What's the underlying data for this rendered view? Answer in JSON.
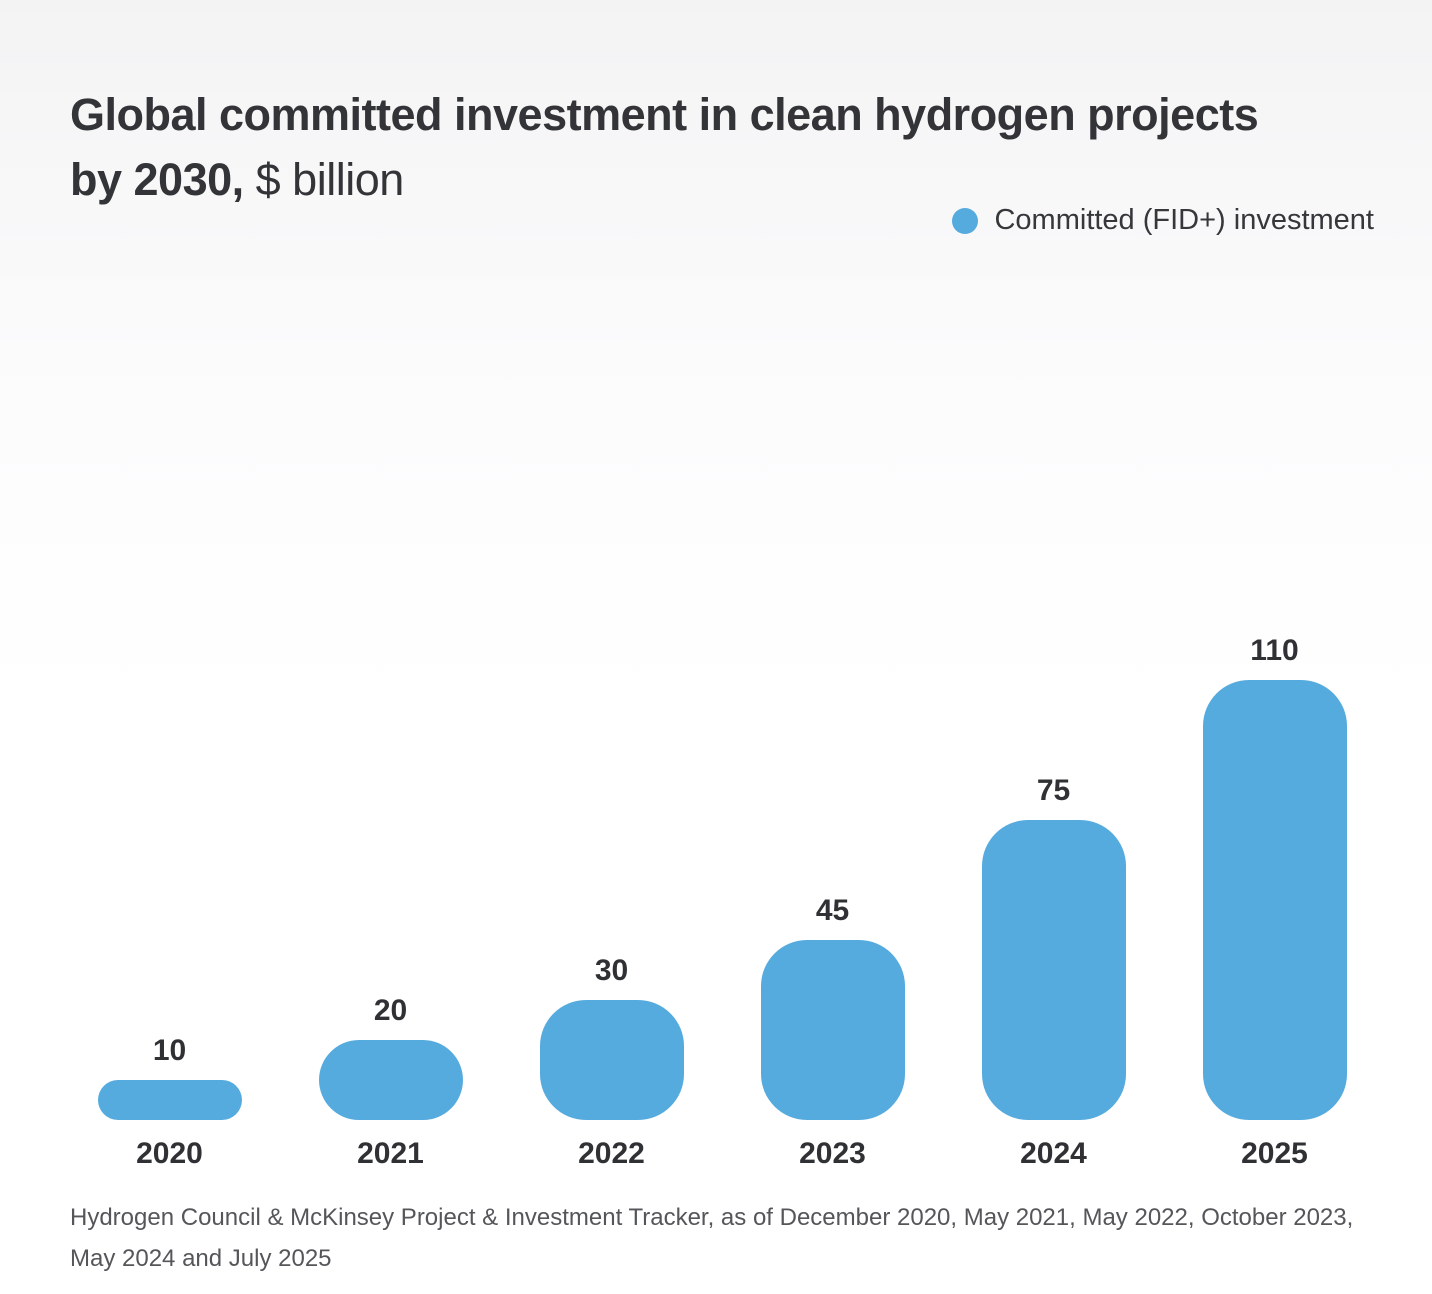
{
  "title": {
    "line1": "Global committed investment in clean hydrogen projects",
    "line2_bold": "by 2030,",
    "line2_regular": "$ billion"
  },
  "legend": {
    "label": "Committed (FID+) investment",
    "dot_color": "#56abde"
  },
  "chart_data": {
    "type": "bar",
    "categories": [
      "2020",
      "2021",
      "2022",
      "2023",
      "2024",
      "2025"
    ],
    "values": [
      10,
      20,
      30,
      45,
      75,
      110
    ],
    "title": "Global committed investment in clean hydrogen projects by 2030, $ billion",
    "xlabel": "",
    "ylabel": "$ billion",
    "ylim": [
      0,
      120
    ],
    "grid": false,
    "data_labels": true,
    "bar_color": "#56abde",
    "legend_entries": [
      "Committed (FID+) investment"
    ],
    "legend_position": "top-right"
  },
  "source": {
    "text": "Hydrogen Council & McKinsey Project & Investment Tracker, as of December 2020, May 2021, May 2022, October 2023, May 2024 and July 2025"
  },
  "colors": {
    "bar": "#56abde",
    "title_text": "#333438",
    "label_text": "#2f3134",
    "source_text": "#545659",
    "background_top": "#f3f3f4",
    "background_bottom": "#ffffff"
  }
}
